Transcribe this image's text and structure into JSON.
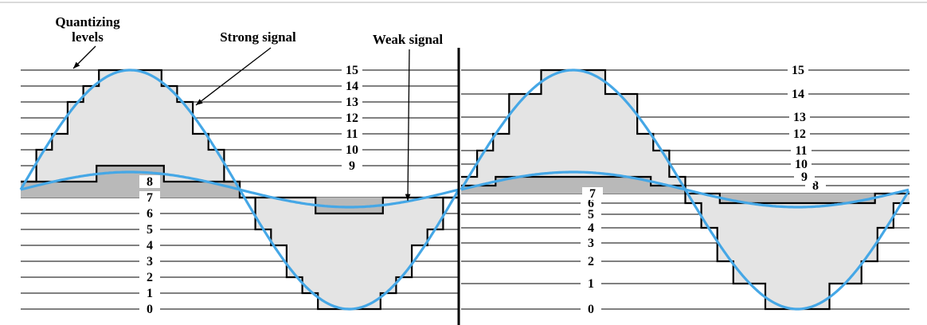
{
  "annotations": {
    "quantizing_line1": "Quantizing",
    "quantizing_line2": "levels",
    "strong_signal": "Strong signal",
    "weak_signal": "Weak signal"
  },
  "left_panel": {
    "level_labels": [
      "0",
      "1",
      "2",
      "3",
      "4",
      "5",
      "6",
      "7",
      "8",
      "9",
      "10",
      "11",
      "12",
      "13",
      "14",
      "15"
    ]
  },
  "right_panel": {
    "level_labels": [
      "0",
      "1",
      "2",
      "3",
      "4",
      "5",
      "6",
      "7",
      "8",
      "9",
      "10",
      "11",
      "12",
      "13",
      "14",
      "15"
    ]
  },
  "colors": {
    "signal": "#45a7e6",
    "strong_fill": "#e4e4e4",
    "weak_fill": "#b9b9b9",
    "lines": "#000000",
    "background": "#ffffff"
  },
  "diagram": {
    "type": "quantization-diagram",
    "levels": 16,
    "left_scale": "uniform",
    "right_scale": "nonuniform",
    "signal_cycles_per_panel": 1
  }
}
